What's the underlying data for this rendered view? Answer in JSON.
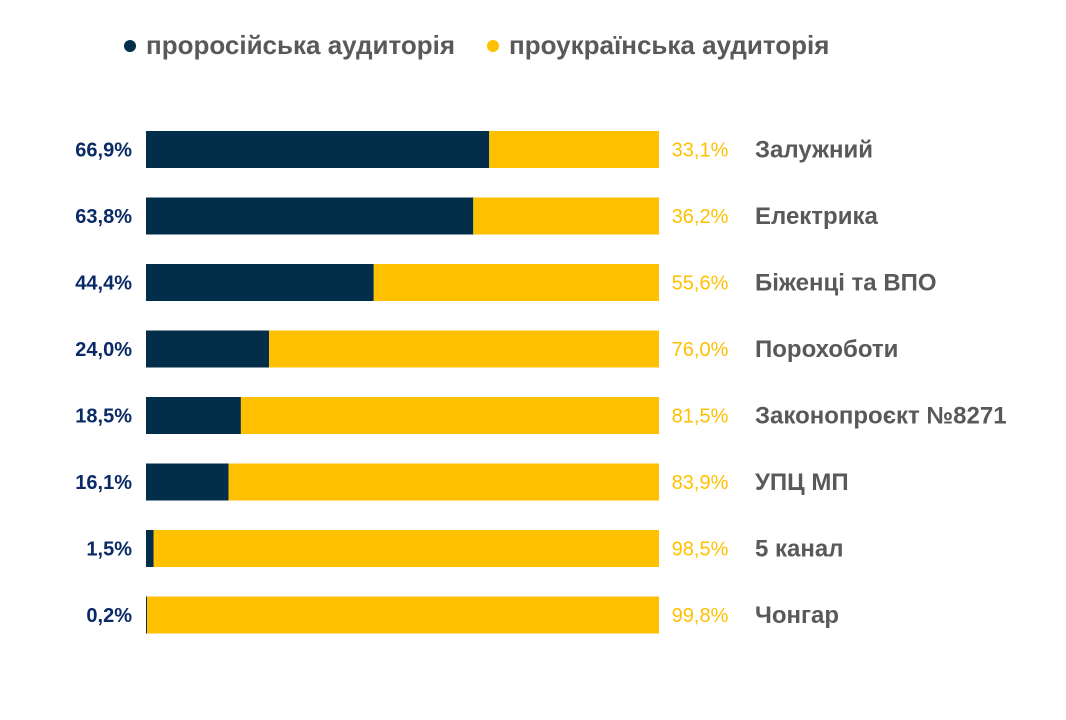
{
  "chart_data": {
    "type": "bar",
    "orientation": "horizontal",
    "stacked": true,
    "title": "",
    "xlabel": "",
    "ylabel": "",
    "xlim": [
      0,
      100
    ],
    "grid": false,
    "legend_position": "top",
    "categories": [
      "Залужний",
      "Електрика",
      "Біженці та ВПО",
      "Порохоботи",
      "Законопроєкт №8271",
      "УПЦ МП",
      "5 канал",
      "Чонгар"
    ],
    "series": [
      {
        "name": "проросійська аудиторія",
        "color": "#022e4a",
        "label_color": "#0a2a66",
        "values": [
          66.9,
          63.8,
          44.4,
          24.0,
          18.5,
          16.1,
          1.5,
          0.2
        ],
        "labels": [
          "66,9%",
          "63,8%",
          "44,4%",
          "24,0%",
          "18,5%",
          "16,1%",
          "1,5%",
          "0,2%"
        ]
      },
      {
        "name": "проукраїнська аудиторія",
        "color": "#ffc000",
        "label_color": "#ffc000",
        "values": [
          33.1,
          36.2,
          55.6,
          76.0,
          81.5,
          83.9,
          98.5,
          99.8
        ],
        "labels": [
          "33,1%",
          "36,2%",
          "55,6%",
          "76,0%",
          "81,5%",
          "83,9%",
          "98,5%",
          "99,8%"
        ]
      }
    ],
    "category_label_color": "#595959"
  },
  "legend": {
    "items": [
      {
        "label": "проросійська аудиторія",
        "color": "#022e4a"
      },
      {
        "label": "проукраїнська аудиторія",
        "color": "#ffc000"
      }
    ]
  }
}
